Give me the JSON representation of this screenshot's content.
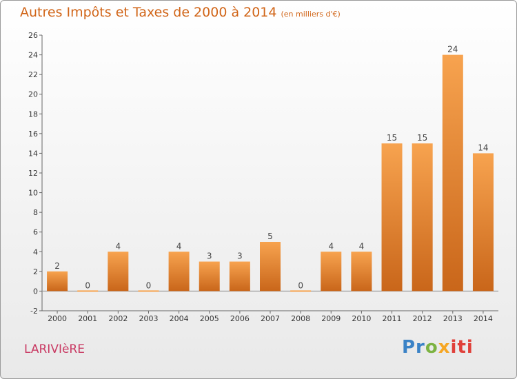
{
  "title": "Autres Impôts et Taxes de 2000 à 2014",
  "subtitle": "(en milliers d'€)",
  "commune": "LARIVIèRE",
  "logo": {
    "p1": "Pr",
    "p2": "o",
    "p3": "x",
    "p4": "iti"
  },
  "colors": {
    "bar_light": "#f7a34f",
    "bar_dark": "#c9661a",
    "title": "#d16518",
    "commune": "#c93a63"
  },
  "chart_data": {
    "type": "bar",
    "title": "Autres Impôts et Taxes de 2000 à 2014",
    "subtitle": "(en milliers d'€)",
    "categories": [
      "2000",
      "2001",
      "2002",
      "2003",
      "2004",
      "2005",
      "2006",
      "2007",
      "2008",
      "2009",
      "2010",
      "2011",
      "2012",
      "2013",
      "2014"
    ],
    "values": [
      2,
      0,
      4,
      0,
      4,
      3,
      3,
      5,
      0,
      4,
      4,
      15,
      15,
      24,
      14
    ],
    "ylim": [
      -2,
      26
    ],
    "yticks": [
      -2,
      0,
      2,
      4,
      6,
      8,
      10,
      12,
      14,
      16,
      18,
      20,
      22,
      24,
      26
    ],
    "grid": false,
    "legend": "none"
  }
}
